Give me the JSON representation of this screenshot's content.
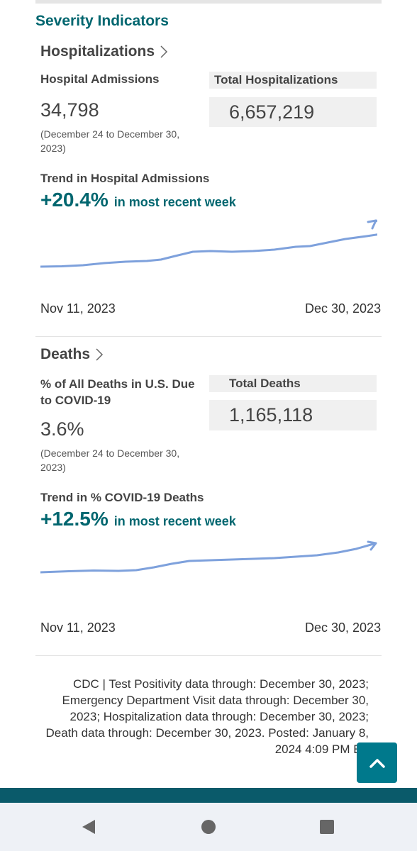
{
  "section_title": "Severity Indicators",
  "hospitalizations": {
    "heading": "Hospitalizations",
    "admissions_label": "Hospital Admissions",
    "admissions_value": "34,798",
    "date_range": "(December 24 to December 30, 2023)",
    "total_label": "Total Hospitalizations",
    "total_value": "6,657,219",
    "trend_title": "Trend in Hospital Admissions",
    "trend_pct": "+20.4%",
    "trend_text": "in most recent week",
    "start_date": "Nov 11, 2023",
    "end_date": "Dec 30, 2023"
  },
  "deaths": {
    "heading": "Deaths",
    "pct_label": "% of All Deaths in U.S. Due to COVID-19",
    "pct_value": "3.6%",
    "date_range": "(December 24 to December 30, 2023)",
    "total_label": "Total Deaths",
    "total_value": "1,165,118",
    "trend_title": "Trend in % COVID-19 Deaths",
    "trend_pct": "+12.5%",
    "trend_text": "in most recent week",
    "start_date": "Nov 11, 2023",
    "end_date": "Dec 30, 2023"
  },
  "footnote": "CDC | Test Positivity data through: December 30, 2023; Emergency Department Visit data through: December 30, 2023; Hospitalization data through: December 30, 2023; Death data through: December 30, 2023. Posted: January 8, 2024 4:09 PM ET",
  "colors": {
    "accent": "#00666f",
    "sparkline": "#7ea1dc",
    "back_to_top": "#00798c",
    "footer_band": "#0a5a6a"
  },
  "icons": {
    "chevron": "chevron-right-icon",
    "back_to_top": "chevron-up-icon",
    "nav_back": "triangle-back-icon",
    "nav_home": "circle-home-icon",
    "nav_recents": "square-recents-icon"
  }
}
